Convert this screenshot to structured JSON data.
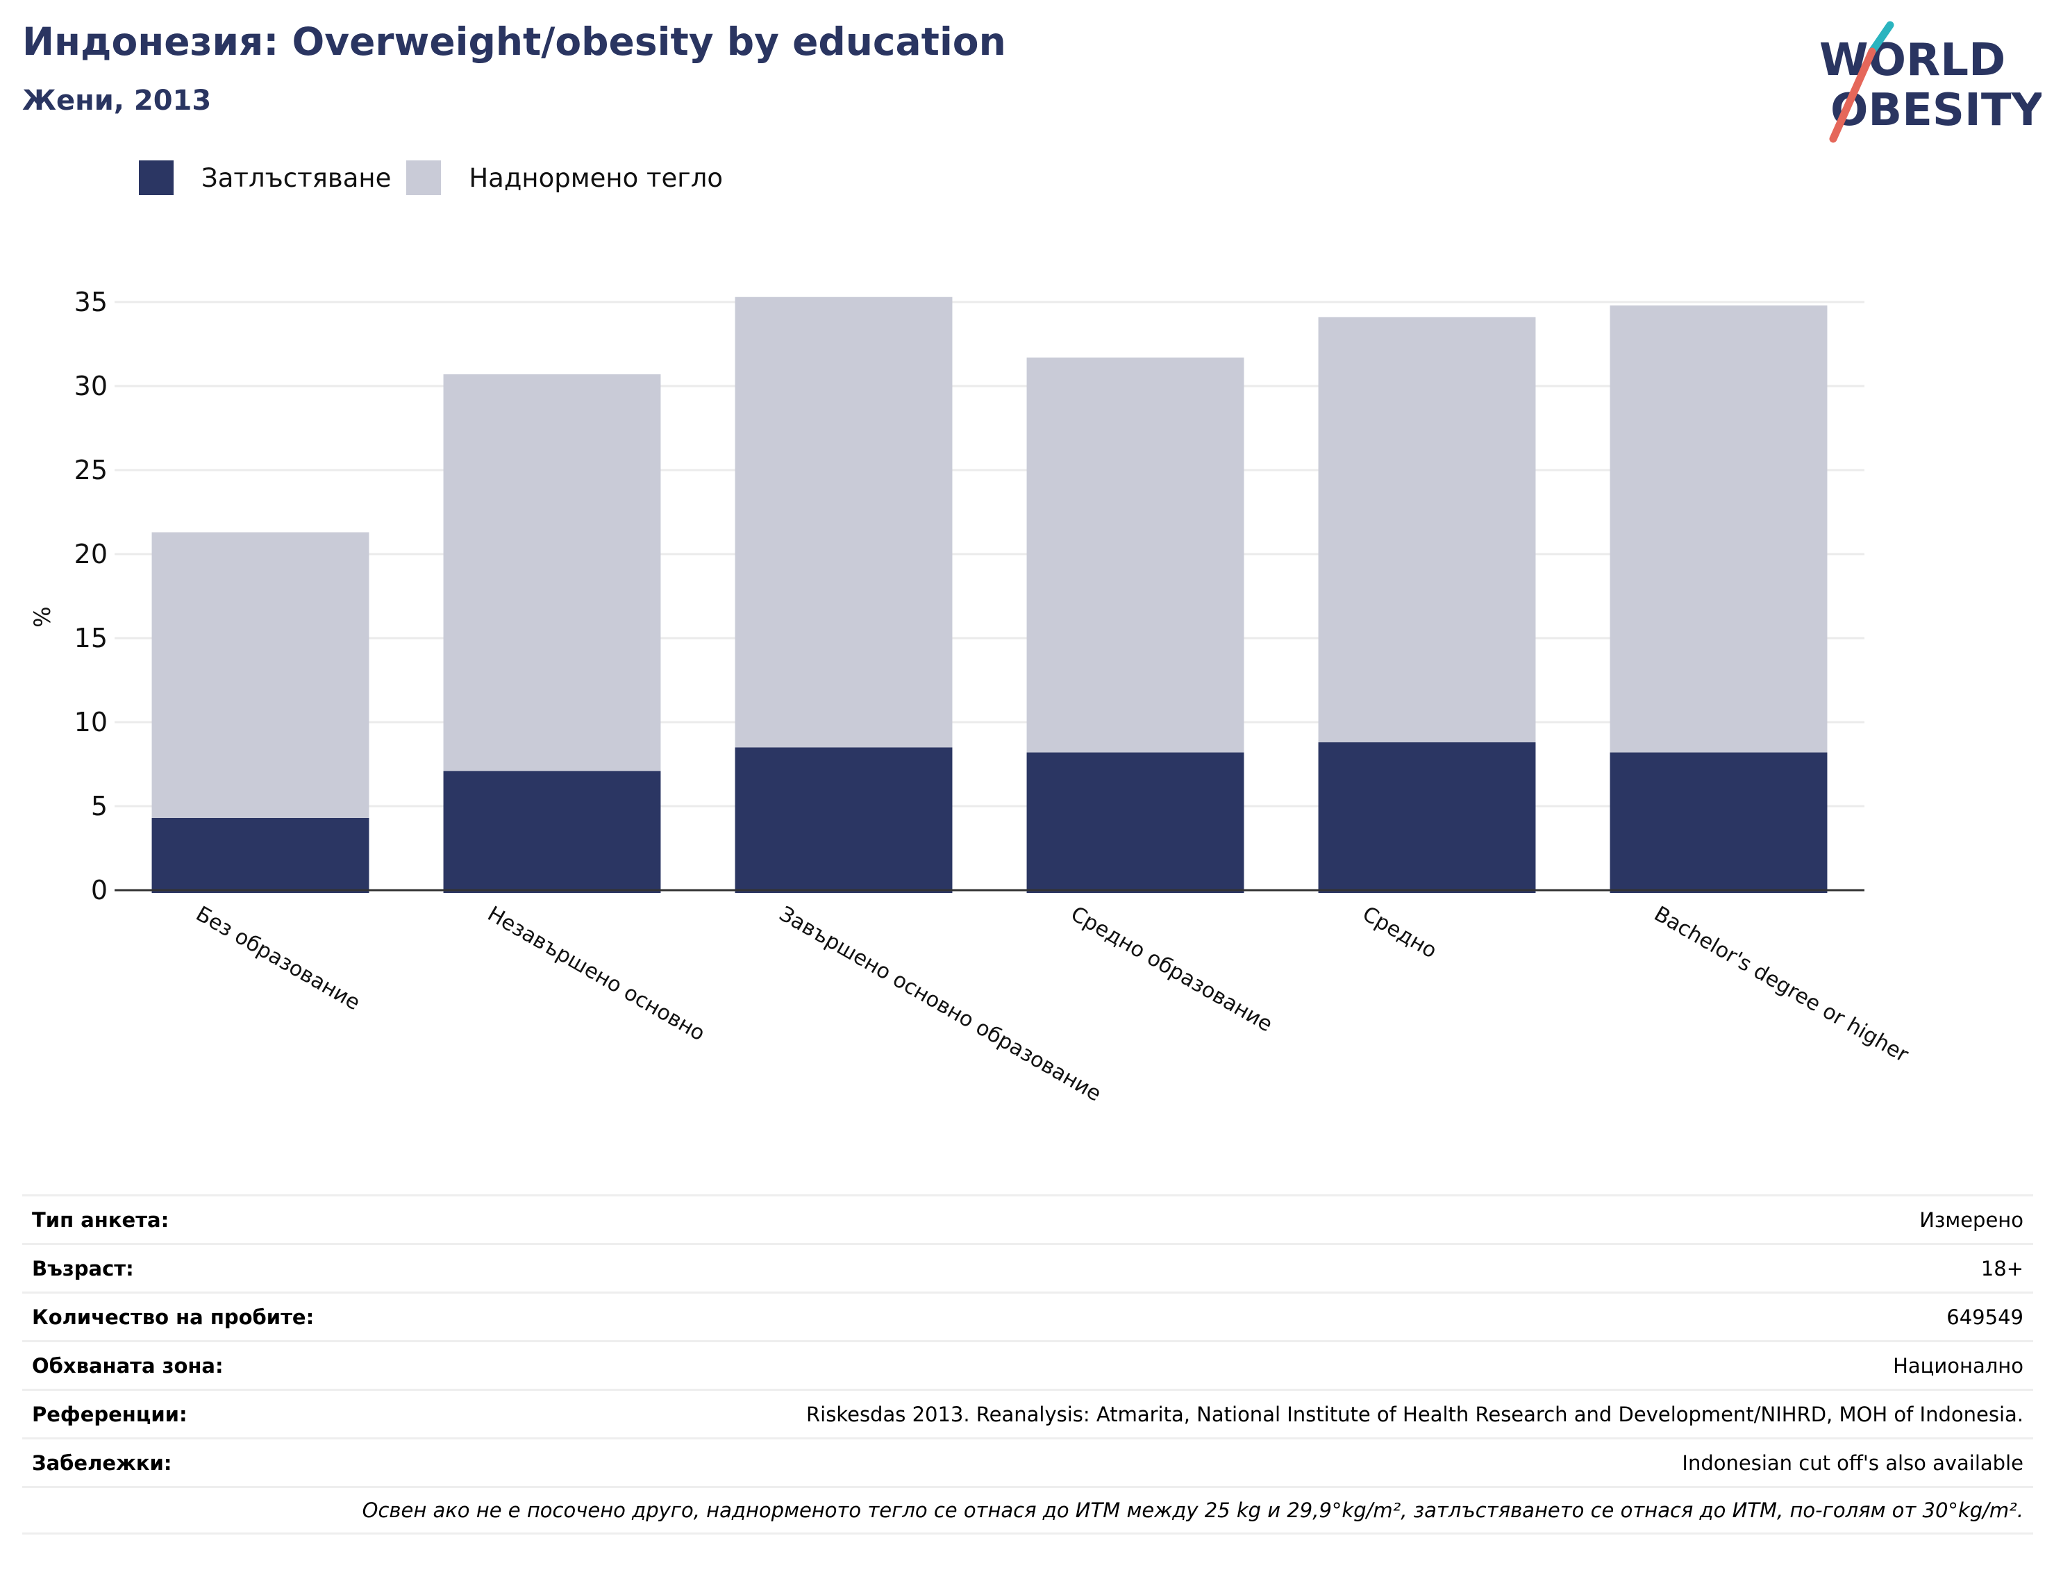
{
  "header": {
    "title": "Индонезия: Overweight/obesity by education",
    "subtitle": "Жени, 2013"
  },
  "logo": {
    "line1": "WORLD",
    "line2": "OBESITY"
  },
  "colors": {
    "obesity": "#2b3663",
    "overweight": "#c9cbd7",
    "accent_teal": "#2ab4bf",
    "accent_red": "#e5675a"
  },
  "chart_data": {
    "type": "bar",
    "stacked": true,
    "ylabel": "%",
    "ylim": [
      0,
      35
    ],
    "yticks": [
      0,
      5,
      10,
      15,
      20,
      25,
      30,
      35
    ],
    "grid": true,
    "legend_position": "top-left",
    "categories": [
      "Без образование",
      "Незавършено основно",
      "Завършено основно образование",
      "Средно образование",
      "Средно",
      "Bachelor's degree or higher"
    ],
    "series": [
      {
        "name": "Затлъстяване",
        "values": [
          4.3,
          7.1,
          8.5,
          8.2,
          8.8,
          8.2
        ]
      },
      {
        "name": "Наднормено тегло",
        "values": [
          17.0,
          23.6,
          26.8,
          23.5,
          25.3,
          26.6
        ]
      }
    ]
  },
  "meta": {
    "rows": [
      {
        "label": "Тип анкета:",
        "value": "Измерено"
      },
      {
        "label": "Възраст:",
        "value": "18+"
      },
      {
        "label": "Количество на пробите:",
        "value": "649549"
      },
      {
        "label": "Обхваната зона:",
        "value": "Национално"
      },
      {
        "label": "Референции:",
        "value": "Riskesdas 2013. Reanalysis: Atmarita, National Institute of Health Research and Development/NIHRD, MOH of Indonesia."
      },
      {
        "label": "Забележки:",
        "value": "Indonesian cut off's also available"
      }
    ],
    "note": "Освен ако не е посочено друго, наднорменото тегло се отнася до ИТМ между 25 kg и 29,9°kg/m², затлъстяването се отнася до ИТМ, по-голям от 30°kg/m²."
  }
}
